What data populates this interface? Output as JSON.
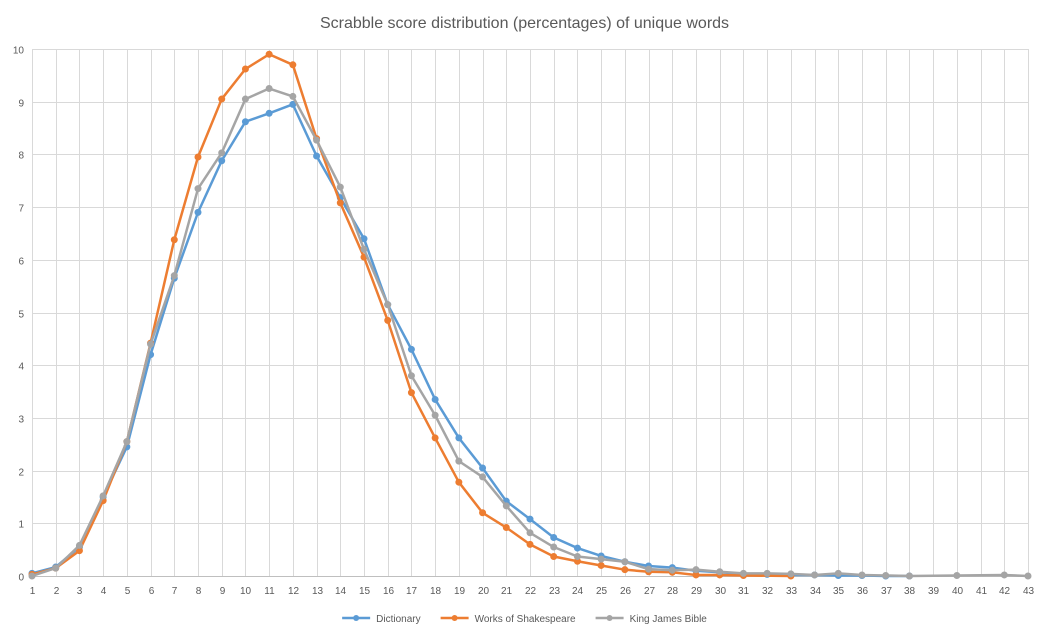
{
  "chart_data": {
    "type": "line",
    "title": "Scrabble score distribution (percentages) of unique words",
    "xlabel": "",
    "ylabel": "",
    "categories": [
      1,
      2,
      3,
      4,
      5,
      6,
      7,
      8,
      9,
      10,
      11,
      12,
      13,
      14,
      15,
      16,
      17,
      18,
      19,
      20,
      21,
      22,
      23,
      24,
      25,
      26,
      27,
      28,
      29,
      30,
      31,
      32,
      33,
      34,
      35,
      36,
      37,
      38,
      39,
      40,
      41,
      42,
      43
    ],
    "ylim": [
      0,
      10
    ],
    "yticks": [
      0,
      1,
      2,
      3,
      4,
      5,
      6,
      7,
      8,
      9,
      10
    ],
    "grid": true,
    "legend": "bottom",
    "series": [
      {
        "name": "Dictionary",
        "color": "#5b9bd5",
        "points": [
          [
            1,
            0.05
          ],
          [
            2,
            0.17
          ],
          [
            3,
            0.55
          ],
          [
            4,
            1.5
          ],
          [
            5,
            2.45
          ],
          [
            6,
            4.2
          ],
          [
            7,
            5.65
          ],
          [
            8,
            6.9
          ],
          [
            9,
            7.88
          ],
          [
            10,
            8.62
          ],
          [
            11,
            8.78
          ],
          [
            12,
            8.95
          ],
          [
            13,
            7.97
          ],
          [
            14,
            7.18
          ],
          [
            15,
            6.4
          ],
          [
            16,
            5.15
          ],
          [
            17,
            4.3
          ],
          [
            18,
            3.35
          ],
          [
            19,
            2.62
          ],
          [
            20,
            2.05
          ],
          [
            21,
            1.42
          ],
          [
            22,
            1.08
          ],
          [
            23,
            0.73
          ],
          [
            24,
            0.53
          ],
          [
            25,
            0.38
          ],
          [
            26,
            0.27
          ],
          [
            27,
            0.19
          ],
          [
            28,
            0.16
          ],
          [
            29,
            0.1
          ],
          [
            30,
            0.07
          ],
          [
            31,
            0.04
          ],
          [
            32,
            0.03
          ],
          [
            33,
            0.02
          ],
          [
            34,
            0.02
          ],
          [
            35,
            0.01
          ],
          [
            36,
            0.01
          ],
          [
            37,
            0.0
          ],
          [
            38,
            0.0
          ]
        ]
      },
      {
        "name": "Works of Shakespeare",
        "color": "#ed7d31",
        "points": [
          [
            1,
            0.03
          ],
          [
            2,
            0.15
          ],
          [
            3,
            0.48
          ],
          [
            4,
            1.43
          ],
          [
            5,
            2.55
          ],
          [
            6,
            4.42
          ],
          [
            7,
            6.38
          ],
          [
            8,
            7.95
          ],
          [
            9,
            9.05
          ],
          [
            10,
            9.62
          ],
          [
            11,
            9.9
          ],
          [
            12,
            9.7
          ],
          [
            13,
            8.3
          ],
          [
            14,
            7.08
          ],
          [
            15,
            6.05
          ],
          [
            16,
            4.85
          ],
          [
            17,
            3.48
          ],
          [
            18,
            2.62
          ],
          [
            19,
            1.78
          ],
          [
            20,
            1.2
          ],
          [
            21,
            0.92
          ],
          [
            22,
            0.6
          ],
          [
            23,
            0.37
          ],
          [
            24,
            0.28
          ],
          [
            25,
            0.2
          ],
          [
            26,
            0.12
          ],
          [
            27,
            0.08
          ],
          [
            28,
            0.07
          ],
          [
            29,
            0.02
          ],
          [
            30,
            0.02
          ],
          [
            31,
            0.01
          ],
          [
            33,
            0.0
          ]
        ]
      },
      {
        "name": "King James Bible",
        "color": "#a5a5a5",
        "points": [
          [
            1,
            0.0
          ],
          [
            2,
            0.15
          ],
          [
            3,
            0.58
          ],
          [
            4,
            1.52
          ],
          [
            5,
            2.55
          ],
          [
            6,
            4.4
          ],
          [
            7,
            5.7
          ],
          [
            8,
            7.35
          ],
          [
            9,
            8.03
          ],
          [
            10,
            9.05
          ],
          [
            11,
            9.25
          ],
          [
            12,
            9.1
          ],
          [
            13,
            8.27
          ],
          [
            14,
            7.38
          ],
          [
            15,
            6.2
          ],
          [
            16,
            5.15
          ],
          [
            17,
            3.8
          ],
          [
            18,
            3.05
          ],
          [
            19,
            2.18
          ],
          [
            20,
            1.88
          ],
          [
            21,
            1.33
          ],
          [
            22,
            0.82
          ],
          [
            23,
            0.55
          ],
          [
            24,
            0.37
          ],
          [
            25,
            0.32
          ],
          [
            26,
            0.27
          ],
          [
            27,
            0.13
          ],
          [
            28,
            0.11
          ],
          [
            29,
            0.12
          ],
          [
            30,
            0.08
          ],
          [
            31,
            0.05
          ],
          [
            32,
            0.05
          ],
          [
            33,
            0.04
          ],
          [
            34,
            0.02
          ],
          [
            35,
            0.05
          ],
          [
            36,
            0.02
          ],
          [
            37,
            0.01
          ],
          [
            38,
            0.0
          ],
          [
            40,
            0.01
          ],
          [
            42,
            0.02
          ],
          [
            43,
            0.0
          ]
        ]
      }
    ]
  }
}
